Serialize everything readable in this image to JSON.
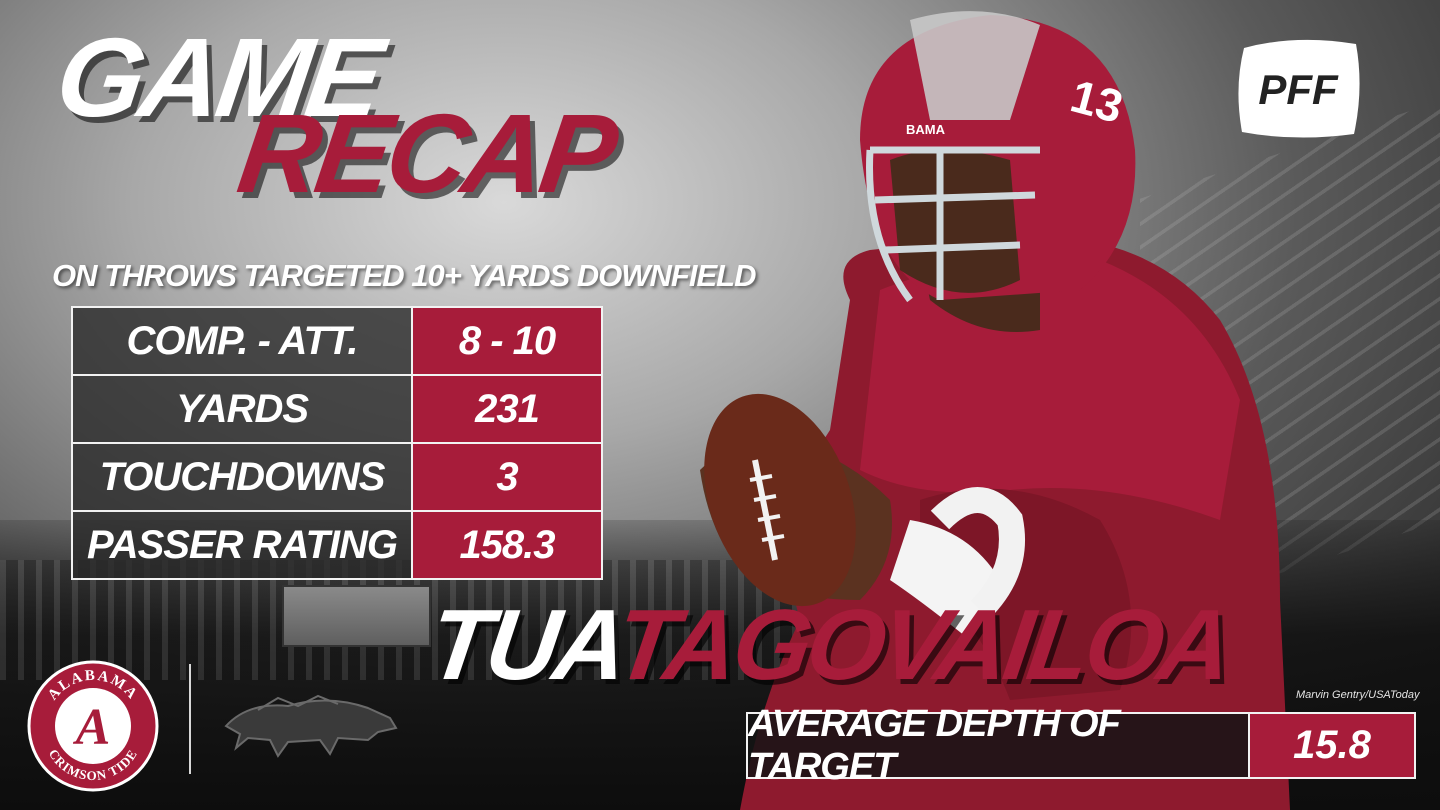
{
  "header": {
    "title_line1": "GAME",
    "title_line2": "RECAP"
  },
  "subtitle": "ON THROWS TARGETED 10+ YARDS DOWNFIELD",
  "stats": [
    {
      "label": "COMP. - ATT.",
      "value": "8 - 10"
    },
    {
      "label": "YARDS",
      "value": "231"
    },
    {
      "label": "TOUCHDOWNS",
      "value": "3"
    },
    {
      "label": "PASSER RATING",
      "value": "158.3"
    }
  ],
  "player": {
    "first_name": "TUA",
    "last_name": "TAGOVAILOA",
    "jersey_number": "13",
    "helmet_text": "BAMA"
  },
  "photo_credit": "Marvin Gentry/USAToday",
  "adot": {
    "label": "AVERAGE DEPTH OF TARGET",
    "value": "15.8"
  },
  "brand": {
    "logo_text": "PFF",
    "accent_color": "#a71c3a"
  },
  "team_logos": {
    "alabama_ring_top": "ALABAMA",
    "alabama_ring_bottom": "CRIMSON TIDE",
    "alabama_letter": "A",
    "opponent_icon": "razorback-hog-icon"
  }
}
